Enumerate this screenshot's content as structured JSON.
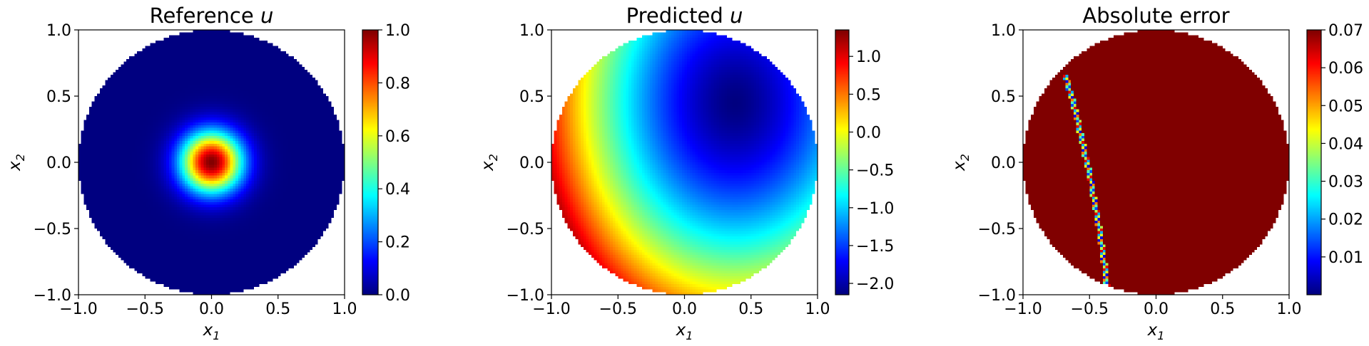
{
  "chart_data": [
    {
      "type": "heatmap",
      "title_text": "Reference ",
      "title_var": "u",
      "xlabel": "x",
      "xlabel_sub": "1",
      "ylabel": "x",
      "ylabel_sub": "2",
      "xlim": [
        -1.0,
        1.0
      ],
      "ylim": [
        -1.0,
        1.0
      ],
      "xticks": [
        "−1.0",
        "−0.5",
        "0.0",
        "0.5",
        "1.0"
      ],
      "yticks": [
        "−1.0",
        "−0.5",
        "0.0",
        "0.5",
        "1.0"
      ],
      "colormap": "jet",
      "domain": "unit disk",
      "field": "gaussian bump centered at origin",
      "colorbar": {
        "min": 0.0,
        "max": 1.0,
        "tick_values": [
          0.0,
          0.2,
          0.4,
          0.6,
          0.8,
          1.0
        ],
        "tick_labels": [
          "0.0",
          "0.2",
          "0.4",
          "0.6",
          "0.8",
          "1.0"
        ]
      }
    },
    {
      "type": "heatmap",
      "title_text": "Predicted ",
      "title_var": "u",
      "xlabel": "x",
      "xlabel_sub": "1",
      "ylabel": "x",
      "ylabel_sub": "2",
      "xlim": [
        -1.0,
        1.0
      ],
      "ylim": [
        -1.0,
        1.0
      ],
      "xticks": [
        "−1.0",
        "−0.5",
        "0.0",
        "0.5",
        "1.0"
      ],
      "yticks": [
        "−1.0",
        "−0.5",
        "0.0",
        "0.5",
        "1.0"
      ],
      "colormap": "jet",
      "domain": "unit disk",
      "field": "smooth gradient, maximum at left edge, minimum near (0.35, 0.45)",
      "colorbar": {
        "min": -2.15,
        "max": 1.35,
        "tick_values": [
          1.0,
          0.5,
          0.0,
          -0.5,
          -1.0,
          -1.5,
          -2.0
        ],
        "tick_labels": [
          "1.0",
          "0.5",
          "0.0",
          "−0.5",
          "−1.0",
          "−1.5",
          "−2.0"
        ]
      }
    },
    {
      "type": "heatmap",
      "title_text": "Absolute error",
      "title_var": "",
      "xlabel": "x",
      "xlabel_sub": "1",
      "ylabel": "x",
      "ylabel_sub": "2",
      "xlim": [
        -1.0,
        1.0
      ],
      "ylim": [
        -1.0,
        1.0
      ],
      "xticks": [
        "−1.0",
        "−0.5",
        "0.0",
        "0.5",
        "1.0"
      ],
      "yticks": [
        "−1.0",
        "−0.5",
        "0.0",
        "0.5",
        "1.0"
      ],
      "colormap": "jet",
      "domain": "unit disk",
      "field": "saturated high error everywhere except a thin curved band from (-0.72, 0.65) to (-0.3, -1.0)",
      "colorbar": {
        "min": 0.0,
        "max": 0.07,
        "tick_values": [
          0.07,
          0.06,
          0.05,
          0.04,
          0.03,
          0.02,
          0.01
        ],
        "tick_labels": [
          "0.07",
          "0.06",
          "0.05",
          "0.04",
          "0.03",
          "0.02",
          "0.01"
        ]
      }
    }
  ]
}
